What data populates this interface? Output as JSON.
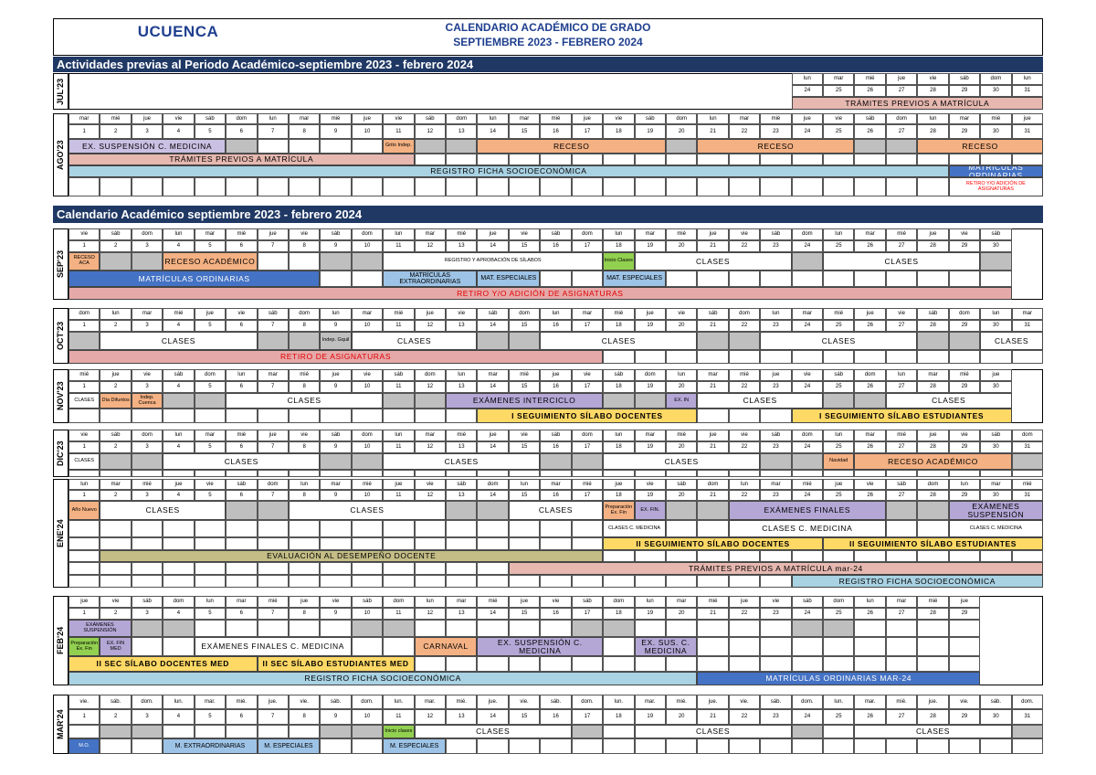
{
  "header": {
    "logo": "UCUENCA",
    "title_line1": "CALENDARIO ACADÉMICO DE GRADO",
    "title_line2": "SEPTIEMBRE 2023 - FEBRERO 2024"
  },
  "sections": [
    "Actividades previas al Periodo Académico-septiembre 2023 - febrero 2024",
    "Calendario Académico septiembre 2023 - febrero 2024"
  ],
  "months": [
    {
      "label": "JUL'23",
      "days": [
        "lun",
        "mar",
        "mié",
        "jue",
        "vie",
        "sáb",
        "dom",
        "lun"
      ],
      "numbers": [
        24,
        25,
        26,
        27,
        28,
        29,
        30,
        31
      ],
      "events": [
        "TRÁMITES PREVIOS A MATRÍCULA"
      ]
    },
    {
      "label": "AGO'23",
      "days": [
        "mar",
        "mié",
        "jue",
        "vie",
        "sáb",
        "dom",
        "lun",
        "mar",
        "mié",
        "jue",
        "vie",
        "sáb",
        "dom",
        "lun",
        "mar",
        "mié",
        "jue",
        "vie",
        "sáb",
        "dom",
        "lun",
        "mar",
        "mié",
        "jue",
        "vie",
        "sáb",
        "dom",
        "lun",
        "mar",
        "mié",
        "jue"
      ],
      "numbers": [
        1,
        2,
        3,
        4,
        5,
        6,
        7,
        8,
        9,
        10,
        11,
        12,
        13,
        14,
        15,
        16,
        17,
        18,
        19,
        20,
        21,
        22,
        23,
        24,
        25,
        26,
        27,
        28,
        29,
        30,
        31
      ],
      "events": [
        "EX. SUSPENSIÓN C. MEDICINA",
        "Grito Indep.",
        "RECESO",
        "RECESO",
        "RECESO",
        "TRÁMITES PREVIOS A MATRÍCULA",
        "REGISTRO FICHA SOCIOECONÓMICA",
        "MATRÍCULAS ORDINARIAS",
        "RETIRO Y/O ADICIÓN DE ASIGNATURAS"
      ]
    },
    {
      "label": "SEP'23",
      "days": [
        "vie",
        "sáb",
        "dom",
        "lun",
        "mar",
        "mié",
        "jue",
        "vie",
        "sáb",
        "dom",
        "lun",
        "mar",
        "mié",
        "jue",
        "vie",
        "sáb",
        "dom",
        "lun",
        "mar",
        "mié",
        "jue",
        "vie",
        "sáb",
        "dom",
        "lun",
        "mar",
        "mié",
        "jue",
        "vie",
        "sáb"
      ],
      "numbers": [
        1,
        2,
        3,
        4,
        5,
        6,
        7,
        8,
        9,
        10,
        11,
        12,
        13,
        14,
        15,
        16,
        17,
        18,
        19,
        20,
        21,
        22,
        23,
        24,
        25,
        26,
        27,
        28,
        29,
        30
      ],
      "events": [
        "RECESO ACA",
        "RECESO ACADÉMICO",
        "REGISTRO Y APROBACIÓN DE SÍLABOS",
        "Inicio Clases",
        "CLASES",
        "CLASES",
        "MATRÍCULAS ORDINARIAS",
        "MATRÍCULAS EXTRAORDINARIAS",
        "MAT. ESPECIALES",
        "MAT. ESPECIALES",
        "RETIRO Y/O ADICIÓN DE ASIGNATURAS"
      ]
    },
    {
      "label": "OCT'23",
      "days": [
        "dom",
        "lun",
        "mar",
        "mié",
        "jue",
        "vie",
        "sáb",
        "dom",
        "lun",
        "mar",
        "mié",
        "jue",
        "vie",
        "sáb",
        "dom",
        "lun",
        "mar",
        "mié",
        "jue",
        "vie",
        "sáb",
        "dom",
        "lun",
        "mar",
        "mié",
        "jue",
        "vie",
        "sáb",
        "dom",
        "lun",
        "mar"
      ],
      "numbers": [
        1,
        2,
        3,
        4,
        5,
        6,
        7,
        8,
        9,
        10,
        11,
        12,
        13,
        14,
        15,
        16,
        17,
        18,
        19,
        20,
        21,
        22,
        23,
        24,
        25,
        26,
        27,
        28,
        29,
        30,
        31
      ],
      "events": [
        "CLASES",
        "Indep. Gquil",
        "CLASES",
        "CLASES",
        "CLASES",
        "CLASES",
        "RETIRO DE ASIGNATURAS"
      ]
    },
    {
      "label": "NOV'23",
      "days": [
        "mié",
        "jue",
        "vie",
        "sáb",
        "dom",
        "lun",
        "mar",
        "mié",
        "jue",
        "vie",
        "sáb",
        "dom",
        "lun",
        "mar",
        "mié",
        "jue",
        "vie",
        "sáb",
        "dom",
        "lun",
        "mar",
        "mié",
        "jue",
        "vie",
        "sáb",
        "dom",
        "lun",
        "mar",
        "mié",
        "jue"
      ],
      "numbers": [
        1,
        2,
        3,
        4,
        5,
        6,
        7,
        8,
        9,
        10,
        11,
        12,
        13,
        14,
        15,
        16,
        17,
        18,
        19,
        20,
        21,
        22,
        23,
        24,
        25,
        26,
        27,
        28,
        29,
        30
      ],
      "events": [
        "CLASES",
        "Día Difuntos",
        "Indep. Cuenca",
        "CLASES",
        "EXÁMENES INTERCICLO",
        "EX. IN",
        "CLASES",
        "CLASES",
        "I SEGUIMIENTO SÍLABO DOCENTES",
        "I SEGUIMIENTO SÍLABO ESTUDIANTES"
      ]
    },
    {
      "label": "DIC'23",
      "days": [
        "vie",
        "sáb",
        "dom",
        "lun",
        "mar",
        "mié",
        "jue",
        "vie",
        "sáb",
        "dom",
        "lun",
        "mar",
        "mié",
        "jue",
        "vie",
        "sáb",
        "dom",
        "lun",
        "mar",
        "mié",
        "jue",
        "vie",
        "sáb",
        "dom",
        "lun",
        "mar",
        "mié",
        "jue",
        "vie",
        "sáb",
        "dom"
      ],
      "numbers": [
        1,
        2,
        3,
        4,
        5,
        6,
        7,
        8,
        9,
        10,
        11,
        12,
        13,
        14,
        15,
        16,
        17,
        18,
        19,
        20,
        21,
        22,
        23,
        24,
        25,
        26,
        27,
        28,
        29,
        30,
        31
      ],
      "events": [
        "CLASES",
        "CLASES",
        "CLASES",
        "CLASES",
        "Navidad",
        "RECESO ACADÉMICO"
      ]
    },
    {
      "label": "ENE'24",
      "days": [
        "lun",
        "mar",
        "mié",
        "jue",
        "vie",
        "sáb",
        "dom",
        "lun",
        "mar",
        "mié",
        "jue",
        "vie",
        "sáb",
        "dom",
        "lun",
        "mar",
        "mié",
        "jue",
        "vie",
        "sáb",
        "dom",
        "lun",
        "mar",
        "mié",
        "jue",
        "vie",
        "sáb",
        "dom",
        "lun",
        "mar",
        "mié"
      ],
      "numbers": [
        1,
        2,
        3,
        4,
        5,
        6,
        7,
        8,
        9,
        10,
        11,
        12,
        13,
        14,
        15,
        16,
        17,
        18,
        19,
        20,
        21,
        22,
        23,
        24,
        25,
        26,
        27,
        28,
        29,
        30,
        31
      ],
      "events": [
        "Año Nuevo",
        "CLASES",
        "CLASES",
        "CLASES",
        "Preparación Ex. Fin",
        "EX. FIN.",
        "EXÁMENES FINALES",
        "EXÁMENES SUSPENSIÓN",
        "CLASES C. MEDICINA",
        "CLASES C. MEDICINA",
        "CLASES C. MEDICINA",
        "II SEGUIMIENTO SÍLABO DOCENTES",
        "II SEGUIMIENTO SÍLABO ESTUDIANTES",
        "EVALUACIÓN AL DESEMPEÑO DOCENTE",
        "TRÁMITES PREVIOS A MATRÍCULA mar-24",
        "REGISTRO FICHA SOCIOECONÓMICA"
      ]
    },
    {
      "label": "FEB'24",
      "days": [
        "jue",
        "vie",
        "sáb",
        "dom",
        "lun",
        "mar",
        "mié",
        "jue",
        "vie",
        "sáb",
        "dom",
        "lun",
        "mar",
        "mié",
        "jue",
        "vie",
        "sáb",
        "dom",
        "lun",
        "mar",
        "mié",
        "jue",
        "vie",
        "sáb",
        "dom",
        "lun",
        "mar",
        "mié",
        "jue"
      ],
      "numbers": [
        1,
        2,
        3,
        4,
        5,
        6,
        7,
        8,
        9,
        10,
        11,
        12,
        13,
        14,
        15,
        16,
        17,
        18,
        19,
        20,
        21,
        22,
        23,
        24,
        25,
        26,
        27,
        28,
        29
      ],
      "events": [
        "EXÁMENES SUSPENSIÓN",
        "Preparación Ex. Fin",
        "EX. FIN MED",
        "EXÁMENES FINALES C. MEDICINA",
        "CARNAVAL",
        "EX. SUSPENSIÓN C. MEDICINA",
        "EX. SUS. C. MEDICINA",
        "II SEC SÍLABO DOCENTES MED",
        "II SEC SÍLABO ESTUDIANTES MED",
        "REGISTRO FICHA SOCIOECONÓMICA",
        "MATRÍCULAS ORDINARIAS MAR-24"
      ]
    },
    {
      "label": "MAR'24",
      "days": [
        "vie.",
        "sáb.",
        "dom.",
        "lun.",
        "mar.",
        "mié.",
        "jue.",
        "vie.",
        "sáb.",
        "dom.",
        "lun.",
        "mar.",
        "mié.",
        "jue.",
        "vie.",
        "sáb.",
        "dom.",
        "lun.",
        "mar.",
        "mié.",
        "jue.",
        "vie.",
        "sáb.",
        "dom.",
        "lun.",
        "mar.",
        "mié.",
        "jue.",
        "vie.",
        "sáb.",
        "dom."
      ],
      "numbers": [
        1,
        2,
        3,
        4,
        5,
        6,
        7,
        8,
        9,
        10,
        11,
        12,
        13,
        14,
        15,
        16,
        17,
        18,
        19,
        20,
        21,
        22,
        23,
        24,
        25,
        26,
        27,
        28,
        29,
        30,
        31
      ],
      "events": [
        "Inicio clases",
        "CLASES",
        "CLASES",
        "CLASES",
        "M.O.",
        "M. EXTRAORDINARIAS",
        "M. ESPECIALES",
        "M. ESPECIALES"
      ]
    }
  ]
}
